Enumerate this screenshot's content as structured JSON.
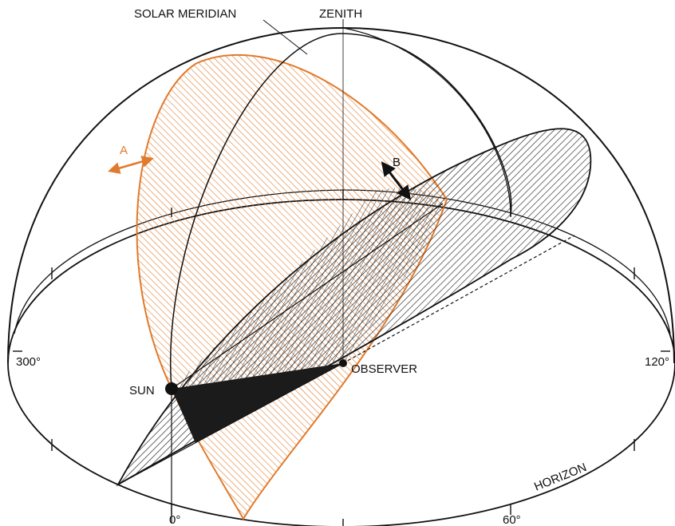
{
  "labels": {
    "solar_meridian": "SOLAR MERIDIAN",
    "zenith": "ZENITH",
    "a": "A",
    "b": "B",
    "sun": "SUN",
    "observer": "OBSERVER",
    "horizon": "HORIZON",
    "deg_300": "300°",
    "deg_120": "120°",
    "deg_0": "0°",
    "deg_60": "60°"
  },
  "colors": {
    "ink": "#111111",
    "orange": "#e07a2c",
    "orange_fill": "#f6c8a0",
    "dark_hatch": "#222222",
    "triangle": "#1b1b1b"
  }
}
